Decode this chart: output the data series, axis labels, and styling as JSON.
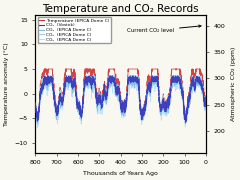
{
  "title": "Temperature and CO₂ Records",
  "xlabel": "Thousands of Years Ago",
  "ylabel_left": "Temperature anomaly (°C)",
  "ylabel_right": "Atmospheric CO₂ (ppm)",
  "xlim": [
    800,
    0
  ],
  "ylim_left": [
    -12,
    16
  ],
  "ylim_right": [
    160,
    420
  ],
  "yticks_left": [
    -10,
    -5,
    0,
    5,
    10,
    15
  ],
  "yticks_right": [
    200,
    250,
    300,
    350,
    400
  ],
  "xticks": [
    800,
    700,
    600,
    500,
    400,
    300,
    200,
    100,
    0
  ],
  "current_co2": 400,
  "current_co2_label": "Current CO₂ level",
  "legend_entries": [
    {
      "label": "Temperature (EPICA Dome C)",
      "color": "#cc3333",
      "lw": 0.5
    },
    {
      "label": "CO₂  (Vostok)",
      "color": "#3333bb",
      "lw": 0.6
    },
    {
      "label": "CO₂  (EPICA Dome C)",
      "color": "#88bbdd",
      "lw": 0.5
    },
    {
      "label": "CO₂  (EPICA Dome C)",
      "color": "#99ccee",
      "lw": 0.5
    },
    {
      "label": "CO₂  (EPICA Dome C)",
      "color": "#aaddff",
      "lw": 0.5
    }
  ],
  "temp_color": "#cc3333",
  "co2_dark_color": "#3333bb",
  "co2_mid_color": "#88bbdd",
  "co2_light_color": "#aaddff",
  "bg_color": "#f8f8f0",
  "title_fontsize": 7.5,
  "label_fontsize": 4.5,
  "tick_fontsize": 4.5,
  "legend_fontsize": 3.2
}
